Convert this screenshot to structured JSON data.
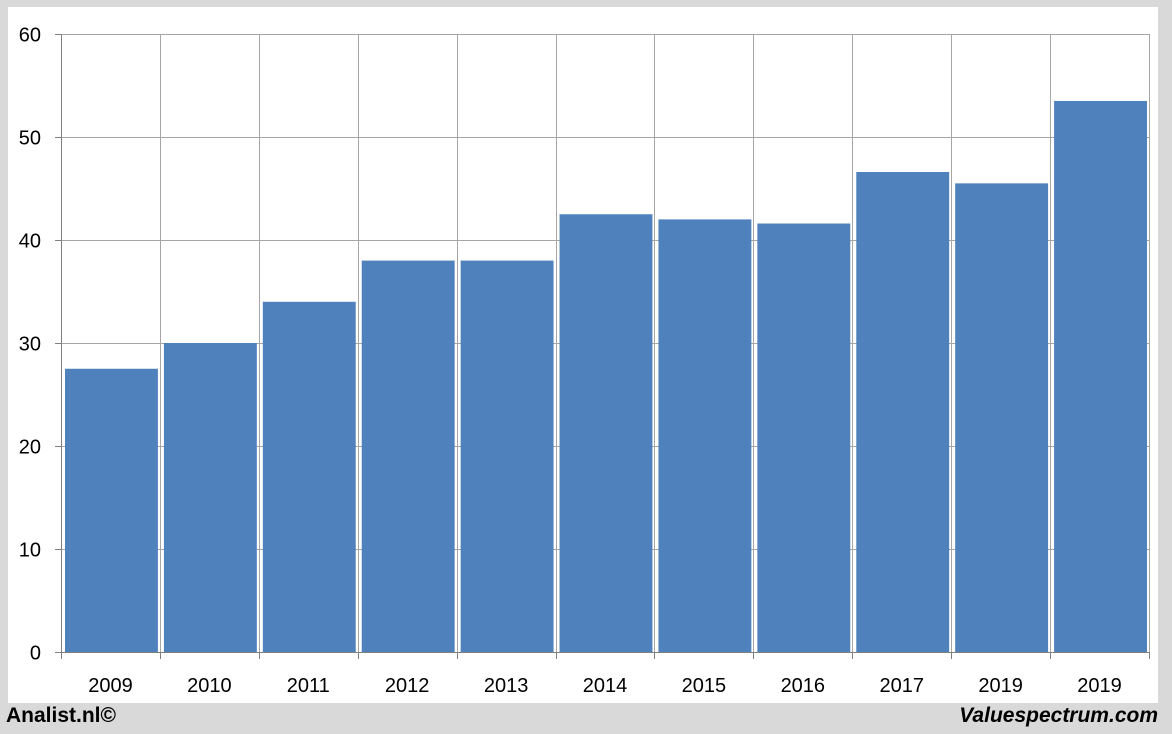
{
  "footer": {
    "left_text": "Analist.nl©",
    "right_text": "Valuespectrum.com"
  },
  "colors": {
    "bar": "#4f81bd",
    "grid": "#a6a6a6",
    "axis": "#808080",
    "background": "#ffffff",
    "frame": "#d9d9d9"
  },
  "chart_data": {
    "type": "bar",
    "categories": [
      "2009",
      "2010",
      "2011",
      "2012",
      "2013",
      "2014",
      "2015",
      "2016",
      "2017",
      "2019",
      "2019"
    ],
    "values": [
      27.5,
      30.0,
      34.0,
      38.0,
      38.0,
      42.5,
      42.0,
      41.6,
      46.6,
      45.5,
      53.5
    ],
    "yticks": [
      0,
      10,
      20,
      30,
      40,
      50,
      60
    ],
    "ylim": [
      0,
      60
    ],
    "grid": true
  }
}
